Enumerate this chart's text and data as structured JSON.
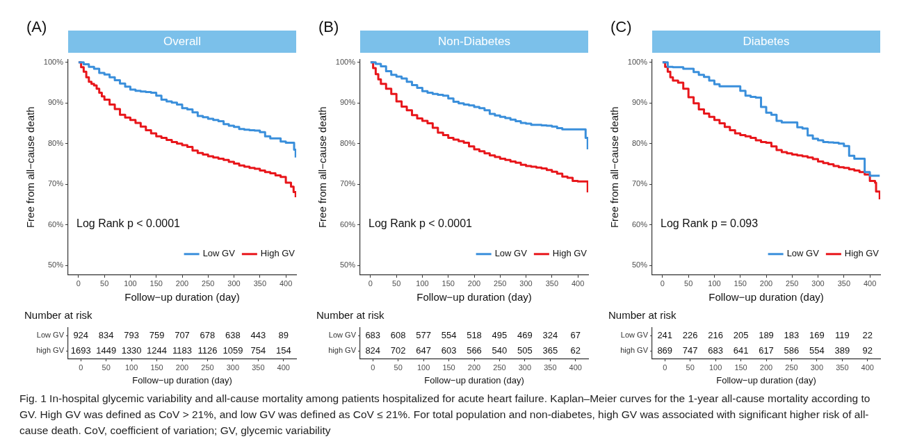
{
  "chart_data": [
    {
      "type": "step",
      "title": "Overall",
      "xlabel": "Follow−up duration (day)",
      "ylabel": "Free from all−cause death",
      "xlim": [
        -20,
        420
      ],
      "ylim": [
        47.7,
        100.7
      ],
      "xticks": [
        0,
        50,
        100,
        150,
        200,
        250,
        300,
        350,
        400
      ],
      "yticks": [
        {
          "value": 50,
          "label": "50%"
        },
        {
          "value": 60,
          "label": "60%"
        },
        {
          "value": 70,
          "label": "70%"
        },
        {
          "value": 80,
          "label": "80%"
        },
        {
          "value": 90,
          "label": "90%"
        },
        {
          "value": 100,
          "label": "100%"
        }
      ],
      "legend": "bottom right",
      "annotations": [
        "(A)",
        "Log Rank p < 0.0001",
        "Fig. 1 In-hospital glycemic variability and all-cause mortality among patients hospitalized for acute heart failure. Kaplan–Meier curves for the 1-year all-cause mortality according to GV. High GV was defined as CoV > 21%, and low GV was defined as CoV ≤ 21%. For total population and non-diabetes, high GV was associated with significant higher risk of all-cause death. CoV, coefficient of variation; GV, glycemic variability"
      ],
      "series": [
        {
          "name": "Low GV",
          "color": "#3a8fdb",
          "x": [
            0,
            10,
            20,
            30,
            40,
            50,
            60,
            70,
            80,
            90,
            100,
            110,
            120,
            130,
            140,
            150,
            160,
            170,
            180,
            190,
            200,
            210,
            220,
            230,
            240,
            250,
            260,
            270,
            280,
            290,
            300,
            310,
            320,
            330,
            340,
            350,
            360,
            370,
            380,
            390,
            400,
            410,
            416,
            419
          ],
          "values": [
            100,
            99.5,
            98.9,
            98.4,
            97.4,
            97.0,
            96.3,
            95.6,
            94.8,
            94.0,
            93.3,
            93.0,
            92.8,
            92.7,
            92.5,
            91.8,
            90.8,
            90.4,
            90.1,
            89.6,
            88.7,
            88.4,
            87.7,
            86.8,
            86.5,
            86.1,
            85.8,
            85.5,
            84.8,
            84.4,
            84.1,
            83.6,
            83.4,
            83.3,
            83.2,
            82.8,
            81.8,
            81.3,
            81.3,
            80.5,
            80.2,
            80.2,
            78.5,
            76.6
          ]
        },
        {
          "name": "High GV",
          "color": "#e8161b",
          "x": [
            0,
            5,
            10,
            15,
            20,
            25,
            30,
            35,
            40,
            45,
            50,
            60,
            70,
            80,
            90,
            100,
            110,
            120,
            130,
            140,
            150,
            160,
            170,
            180,
            190,
            200,
            210,
            220,
            230,
            240,
            250,
            260,
            270,
            280,
            290,
            300,
            310,
            320,
            330,
            340,
            350,
            360,
            370,
            380,
            390,
            400,
            410,
            415,
            419
          ],
          "values": [
            100,
            98.8,
            97.7,
            96.3,
            95.2,
            94.7,
            94.3,
            93.5,
            92.5,
            91.6,
            90.8,
            89.6,
            88.5,
            87.1,
            86.4,
            85.8,
            85.1,
            84.2,
            83.3,
            82.5,
            81.8,
            81.4,
            80.9,
            80.4,
            80.0,
            79.6,
            79.2,
            78.3,
            77.7,
            77.3,
            76.9,
            76.6,
            76.3,
            76.0,
            75.5,
            75.1,
            74.6,
            74.3,
            74.0,
            73.8,
            73.4,
            73.0,
            72.7,
            72.2,
            71.8,
            70.4,
            69.4,
            68.1,
            66.8
          ]
        }
      ]
    },
    {
      "type": "step",
      "title": "Non-Diabetes",
      "xlabel": "Follow−up duration (day)",
      "ylabel": "Free from all−cause death",
      "xlim": [
        -20,
        420
      ],
      "ylim": [
        47.7,
        100.7
      ],
      "xticks": [
        0,
        50,
        100,
        150,
        200,
        250,
        300,
        350,
        400
      ],
      "yticks": [
        {
          "value": 50,
          "label": "50%"
        },
        {
          "value": 60,
          "label": "60%"
        },
        {
          "value": 70,
          "label": "70%"
        },
        {
          "value": 80,
          "label": "80%"
        },
        {
          "value": 90,
          "label": "90%"
        },
        {
          "value": 100,
          "label": "100%"
        }
      ],
      "legend": "bottom right",
      "annotations": [
        "(B)",
        "Log Rank p < 0.0001"
      ],
      "series": [
        {
          "name": "Low GV",
          "color": "#3a8fdb",
          "x": [
            0,
            10,
            20,
            30,
            40,
            50,
            60,
            70,
            80,
            90,
            100,
            110,
            120,
            130,
            140,
            150,
            160,
            170,
            180,
            190,
            200,
            210,
            220,
            230,
            240,
            250,
            260,
            270,
            280,
            290,
            300,
            310,
            320,
            330,
            340,
            350,
            360,
            370,
            380,
            390,
            400,
            410,
            415,
            419
          ],
          "values": [
            100,
            99.6,
            99.0,
            97.8,
            96.9,
            96.5,
            96.0,
            95.2,
            94.4,
            93.7,
            92.9,
            92.5,
            92.2,
            92.0,
            91.8,
            91.1,
            90.3,
            89.9,
            89.6,
            89.4,
            89.0,
            88.7,
            88.2,
            87.3,
            86.9,
            86.6,
            86.3,
            85.9,
            85.5,
            85.1,
            84.9,
            84.6,
            84.6,
            84.5,
            84.4,
            84.2,
            83.8,
            83.5,
            83.5,
            83.5,
            83.5,
            83.5,
            81.4,
            78.6
          ]
        },
        {
          "name": "High GV",
          "color": "#e8161b",
          "x": [
            0,
            5,
            10,
            15,
            20,
            30,
            40,
            50,
            60,
            70,
            80,
            90,
            100,
            110,
            120,
            130,
            140,
            150,
            160,
            170,
            180,
            190,
            200,
            210,
            220,
            230,
            240,
            250,
            260,
            270,
            280,
            290,
            300,
            310,
            320,
            330,
            340,
            350,
            360,
            370,
            380,
            390,
            400,
            410,
            417,
            419
          ],
          "values": [
            100,
            98.6,
            97.1,
            95.8,
            94.7,
            93.5,
            92.2,
            90.4,
            89.1,
            88.2,
            87.0,
            86.2,
            85.6,
            85.0,
            83.9,
            82.7,
            82.1,
            81.4,
            81.0,
            80.6,
            80.2,
            79.3,
            78.6,
            78.1,
            77.6,
            77.1,
            76.7,
            76.3,
            76.0,
            75.6,
            75.3,
            74.8,
            74.5,
            74.3,
            74.1,
            73.9,
            73.5,
            73.1,
            72.6,
            71.9,
            71.6,
            70.8,
            70.7,
            70.7,
            70.7,
            68.0
          ]
        }
      ]
    },
    {
      "type": "step",
      "title": "Diabetes",
      "xlabel": "Follow−up duration (day)",
      "ylabel": "Free from all−cause death",
      "xlim": [
        -20,
        420
      ],
      "ylim": [
        47.7,
        100.7
      ],
      "xticks": [
        0,
        50,
        100,
        150,
        200,
        250,
        300,
        350,
        400
      ],
      "yticks": [
        {
          "value": 50,
          "label": "50%"
        },
        {
          "value": 60,
          "label": "60%"
        },
        {
          "value": 70,
          "label": "70%"
        },
        {
          "value": 80,
          "label": "80%"
        },
        {
          "value": 90,
          "label": "90%"
        },
        {
          "value": 100,
          "label": "100%"
        }
      ],
      "legend": "bottom right",
      "annotations": [
        "(C)",
        "Log Rank p = 0.093"
      ],
      "series": [
        {
          "name": "Low GV",
          "color": "#3a8fdb",
          "x": [
            0,
            10,
            20,
            30,
            40,
            50,
            60,
            70,
            80,
            90,
            100,
            110,
            120,
            130,
            140,
            150,
            160,
            170,
            180,
            190,
            200,
            210,
            220,
            230,
            240,
            250,
            260,
            270,
            280,
            290,
            300,
            310,
            320,
            330,
            340,
            350,
            360,
            370,
            380,
            390,
            400,
            410,
            419
          ],
          "values": [
            100,
            98.9,
            98.8,
            98.8,
            98.4,
            98.4,
            97.6,
            96.9,
            96.4,
            95.5,
            94.6,
            94.1,
            94.1,
            94.1,
            94.1,
            93.0,
            91.8,
            91.5,
            91.3,
            89.0,
            87.6,
            87.1,
            85.6,
            85.2,
            85.2,
            85.2,
            84.0,
            83.7,
            82.0,
            81.2,
            80.8,
            80.4,
            80.3,
            80.2,
            80.0,
            79.4,
            77.0,
            76.3,
            76.3,
            73.0,
            72.1,
            72.1,
            72.1
          ]
        },
        {
          "name": "High GV",
          "color": "#e8161b",
          "x": [
            0,
            5,
            10,
            15,
            20,
            30,
            40,
            50,
            60,
            70,
            80,
            90,
            100,
            110,
            120,
            130,
            140,
            150,
            160,
            170,
            180,
            190,
            200,
            210,
            220,
            230,
            240,
            250,
            260,
            270,
            280,
            290,
            300,
            310,
            320,
            330,
            340,
            350,
            360,
            370,
            380,
            390,
            400,
            410,
            412,
            419
          ],
          "values": [
            100,
            98.9,
            97.7,
            96.3,
            95.5,
            95.0,
            93.5,
            91.4,
            89.9,
            88.4,
            87.4,
            86.6,
            85.8,
            85.0,
            84.1,
            83.3,
            82.5,
            82.1,
            81.8,
            81.4,
            80.8,
            80.4,
            80.2,
            79.3,
            78.4,
            77.9,
            77.6,
            77.3,
            77.1,
            76.9,
            76.6,
            76.2,
            75.6,
            75.2,
            74.9,
            74.5,
            74.2,
            74.0,
            73.7,
            73.4,
            73.0,
            72.4,
            70.8,
            70.4,
            68.2,
            66.3
          ]
        }
      ]
    },
    {
      "type": "heatmap",
      "title": "Number at risk",
      "xlabel": "Follow−up duration (day)",
      "categories": [
        "0",
        "50",
        "100",
        "150",
        "200",
        "250",
        "300",
        "350",
        "400"
      ],
      "y_categories": [
        "Low GV",
        "high GV"
      ],
      "data_labels": true,
      "cells": [
        [
          924,
          834,
          793,
          759,
          707,
          678,
          638,
          443,
          89
        ],
        [
          1693,
          1449,
          1330,
          1244,
          1183,
          1126,
          1059,
          754,
          154
        ]
      ]
    },
    {
      "type": "heatmap",
      "title": "Number at risk",
      "xlabel": "Follow−up duration (day)",
      "categories": [
        "0",
        "50",
        "100",
        "150",
        "200",
        "250",
        "300",
        "350",
        "400"
      ],
      "y_categories": [
        "Low GV",
        "high GV"
      ],
      "data_labels": true,
      "cells": [
        [
          683,
          608,
          577,
          554,
          518,
          495,
          469,
          324,
          67
        ],
        [
          824,
          702,
          647,
          603,
          566,
          540,
          505,
          365,
          62
        ]
      ]
    },
    {
      "type": "heatmap",
      "title": "Number at risk",
      "xlabel": "Follow−up duration (day)",
      "categories": [
        "0",
        "50",
        "100",
        "150",
        "200",
        "250",
        "300",
        "350",
        "400"
      ],
      "y_categories": [
        "Low GV",
        "high GV"
      ],
      "data_labels": true,
      "cells": [
        [
          241,
          226,
          216,
          205,
          189,
          183,
          169,
          119,
          22
        ],
        [
          869,
          747,
          683,
          641,
          617,
          586,
          554,
          389,
          92
        ]
      ]
    }
  ]
}
